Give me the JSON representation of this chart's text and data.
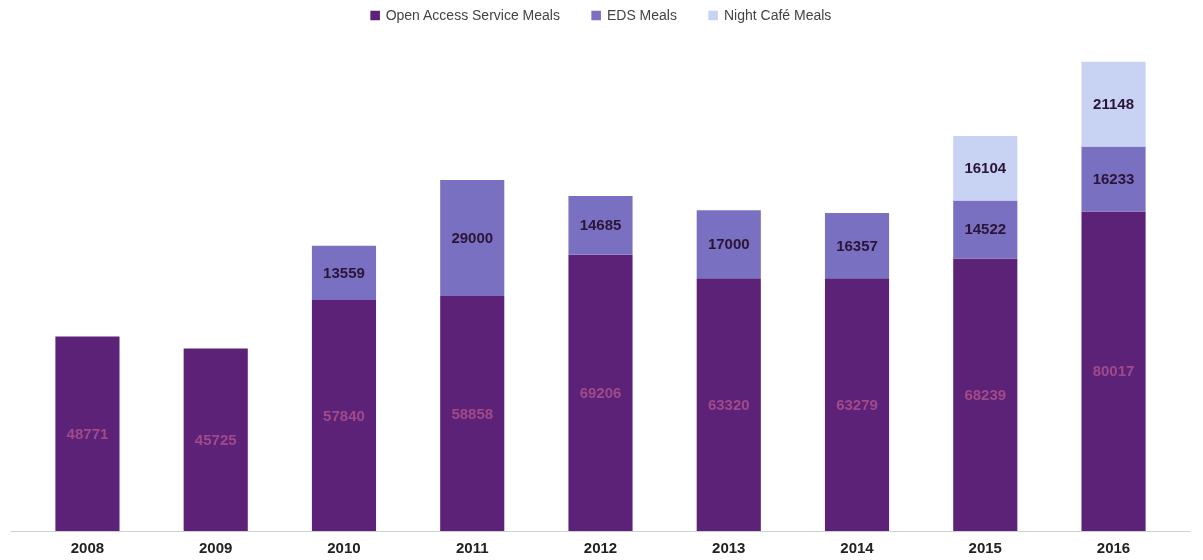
{
  "chart_data": {
    "type": "bar",
    "stacked": true,
    "data_labels": true,
    "legend": "top",
    "grid": false,
    "categories": [
      "2008",
      "2009",
      "2010",
      "2011",
      "2012",
      "2013",
      "2014",
      "2015",
      "2016"
    ],
    "series": [
      {
        "name": "Open Access Service Meals",
        "color": "#5c2277",
        "values": [
          48771,
          45725,
          57840,
          58858,
          69206,
          63320,
          63279,
          68239,
          80017
        ]
      },
      {
        "name": "EDS Meals",
        "color": "#7a70c2",
        "values": [
          null,
          null,
          13559,
          29000,
          14685,
          17000,
          16357,
          14522,
          16233
        ]
      },
      {
        "name": "Night Café Meals",
        "color": "#c8d2f2",
        "values": [
          null,
          null,
          null,
          null,
          null,
          null,
          null,
          16104,
          21148
        ]
      }
    ]
  }
}
